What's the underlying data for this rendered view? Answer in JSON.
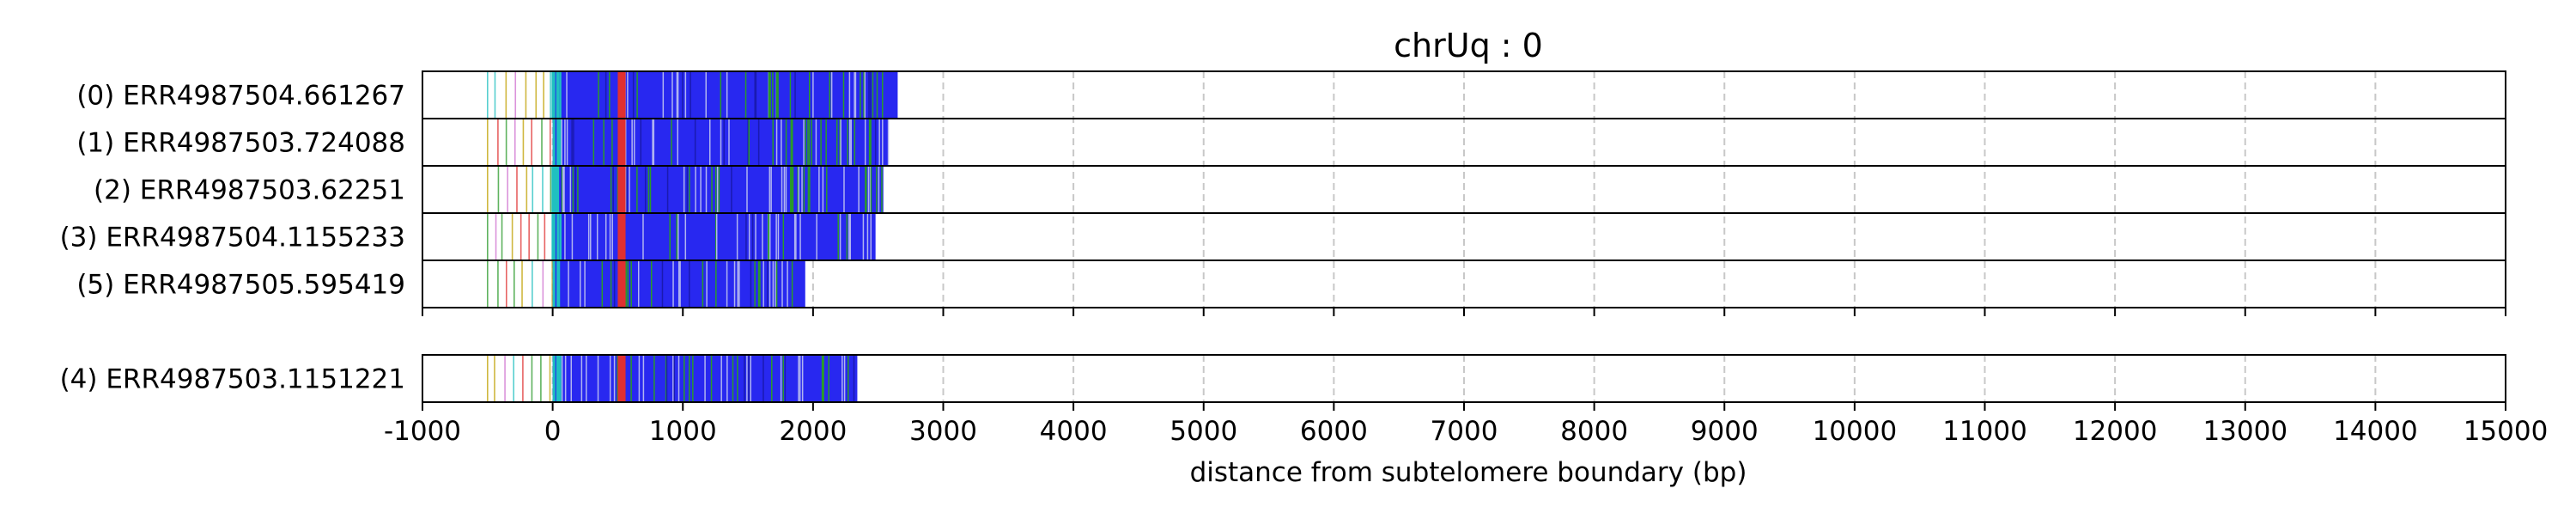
{
  "chart_data": {
    "type": "read-plot",
    "title": "chrUq : 0",
    "xlabel": "distance from subtelomere boundary (bp)",
    "xlim": [
      -1000,
      15000
    ],
    "xticks": [
      -1000,
      0,
      1000,
      2000,
      3000,
      4000,
      5000,
      6000,
      7000,
      8000,
      9000,
      10000,
      11000,
      12000,
      13000,
      14000,
      15000
    ],
    "xtick_labels": [
      "-1000",
      "0",
      "1000",
      "2000",
      "3000",
      "4000",
      "5000",
      "6000",
      "7000",
      "8000",
      "9000",
      "10000",
      "11000",
      "12000",
      "13000",
      "14000",
      "15000"
    ],
    "grid": "vertical dashed at x ticks",
    "colors": {
      "main": "#2828f0",
      "green": "#2a9a2a",
      "red": "#e03030",
      "cyan": "#20c0c0",
      "light": "#b0b4f0"
    },
    "panels": [
      {
        "reads": [
          {
            "label": "(0) ERR4987504.661267",
            "start": -500,
            "end": 2650
          },
          {
            "label": "(1) ERR4987503.724088",
            "start": -500,
            "end": 2580
          },
          {
            "label": "(2) ERR4987503.62251",
            "start": -500,
            "end": 2540
          },
          {
            "label": "(3) ERR4987504.1155233",
            "start": -500,
            "end": 2480
          },
          {
            "label": "(5) ERR4987505.595419",
            "start": -500,
            "end": 1940
          }
        ]
      },
      {
        "reads": [
          {
            "label": "(4) ERR4987503.1151221",
            "start": -500,
            "end": 2340
          }
        ]
      }
    ]
  }
}
